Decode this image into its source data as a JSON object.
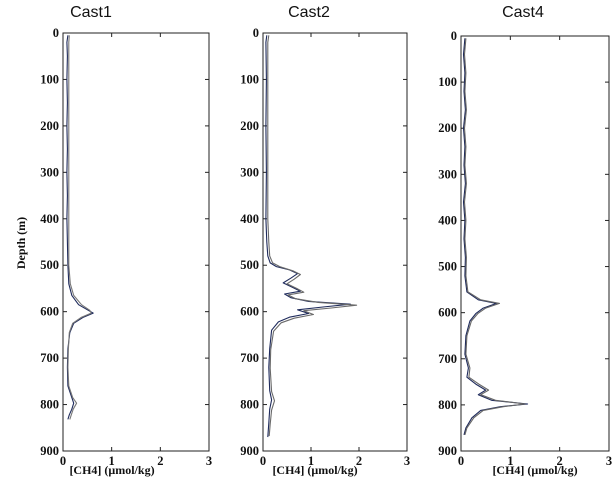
{
  "chart_data": [
    {
      "type": "line",
      "title": "Cast1",
      "xlabel": "[CH4] (μmol/kg)",
      "ylabel": "Depth (m)",
      "xlim": [
        0,
        3
      ],
      "ylim": [
        0,
        900
      ],
      "y_inverted": true,
      "x_ticks": [
        "0",
        "1",
        "2",
        "3"
      ],
      "y_ticks": [
        "0",
        "100",
        "200",
        "300",
        "400",
        "500",
        "600",
        "700",
        "800",
        "900"
      ],
      "series": [
        {
          "color": "#1f2b5c",
          "points": [
            [
              0.1,
              5
            ],
            [
              0.08,
              20
            ],
            [
              0.09,
              50
            ],
            [
              0.08,
              100
            ],
            [
              0.09,
              150
            ],
            [
              0.08,
              200
            ],
            [
              0.09,
              250
            ],
            [
              0.08,
              300
            ],
            [
              0.09,
              350
            ],
            [
              0.08,
              400
            ],
            [
              0.09,
              450
            ],
            [
              0.1,
              500
            ],
            [
              0.12,
              540
            ],
            [
              0.18,
              565
            ],
            [
              0.32,
              585
            ],
            [
              0.52,
              597
            ],
            [
              0.62,
              603
            ],
            [
              0.42,
              612
            ],
            [
              0.22,
              625
            ],
            [
              0.14,
              645
            ],
            [
              0.1,
              680
            ],
            [
              0.09,
              720
            ],
            [
              0.1,
              760
            ],
            [
              0.18,
              785
            ],
            [
              0.22,
              797
            ],
            [
              0.18,
              810
            ],
            [
              0.13,
              822
            ],
            [
              0.1,
              832
            ]
          ]
        },
        {
          "color": "#777777",
          "points": [
            [
              0.13,
              5
            ],
            [
              0.12,
              20
            ],
            [
              0.12,
              50
            ],
            [
              0.12,
              100
            ],
            [
              0.12,
              150
            ],
            [
              0.12,
              200
            ],
            [
              0.12,
              250
            ],
            [
              0.12,
              300
            ],
            [
              0.12,
              350
            ],
            [
              0.12,
              400
            ],
            [
              0.12,
              450
            ],
            [
              0.12,
              500
            ],
            [
              0.15,
              540
            ],
            [
              0.22,
              565
            ],
            [
              0.38,
              585
            ],
            [
              0.55,
              597
            ],
            [
              0.58,
              603
            ],
            [
              0.38,
              612
            ],
            [
              0.2,
              625
            ],
            [
              0.13,
              645
            ],
            [
              0.11,
              680
            ],
            [
              0.1,
              720
            ],
            [
              0.12,
              760
            ],
            [
              0.2,
              785
            ],
            [
              0.28,
              797
            ],
            [
              0.21,
              810
            ],
            [
              0.17,
              822
            ],
            [
              0.14,
              832
            ]
          ]
        }
      ]
    },
    {
      "type": "line",
      "title": "Cast2",
      "xlabel": "[CH4] (μmol/kg)",
      "ylabel": "",
      "xlim": [
        0,
        3
      ],
      "ylim": [
        0,
        900
      ],
      "y_inverted": true,
      "x_ticks": [
        "0",
        "1",
        "2",
        "3"
      ],
      "y_ticks": [
        "0",
        "100",
        "200",
        "300",
        "400",
        "500",
        "600",
        "700",
        "800",
        "900"
      ],
      "series": [
        {
          "color": "#1f2b5c",
          "points": [
            [
              0.08,
              5
            ],
            [
              0.06,
              20
            ],
            [
              0.07,
              100
            ],
            [
              0.06,
              200
            ],
            [
              0.07,
              300
            ],
            [
              0.06,
              400
            ],
            [
              0.08,
              450
            ],
            [
              0.1,
              480
            ],
            [
              0.15,
              495
            ],
            [
              0.28,
              503
            ],
            [
              0.55,
              510
            ],
            [
              0.72,
              518
            ],
            [
              0.58,
              528
            ],
            [
              0.42,
              538
            ],
            [
              0.62,
              548
            ],
            [
              0.78,
              556
            ],
            [
              0.45,
              562
            ],
            [
              0.58,
              570
            ],
            [
              0.95,
              578
            ],
            [
              1.82,
              584
            ],
            [
              1.25,
              590
            ],
            [
              0.72,
              596
            ],
            [
              0.95,
              604
            ],
            [
              0.55,
              612
            ],
            [
              0.32,
              622
            ],
            [
              0.18,
              640
            ],
            [
              0.14,
              680
            ],
            [
              0.12,
              720
            ],
            [
              0.14,
              770
            ],
            [
              0.18,
              790
            ],
            [
              0.14,
              810
            ],
            [
              0.12,
              840
            ],
            [
              0.1,
              870
            ]
          ]
        },
        {
          "color": "#6a6a6a",
          "points": [
            [
              0.12,
              5
            ],
            [
              0.1,
              20
            ],
            [
              0.1,
              100
            ],
            [
              0.1,
              200
            ],
            [
              0.1,
              300
            ],
            [
              0.1,
              400
            ],
            [
              0.12,
              450
            ],
            [
              0.14,
              480
            ],
            [
              0.2,
              495
            ],
            [
              0.35,
              503
            ],
            [
              0.62,
              512
            ],
            [
              0.78,
              520
            ],
            [
              0.65,
              530
            ],
            [
              0.5,
              540
            ],
            [
              0.7,
              550
            ],
            [
              0.85,
              558
            ],
            [
              0.52,
              564
            ],
            [
              0.68,
              572
            ],
            [
              1.15,
              580
            ],
            [
              1.95,
              586
            ],
            [
              1.42,
              592
            ],
            [
              0.85,
              598
            ],
            [
              1.05,
              606
            ],
            [
              0.65,
              614
            ],
            [
              0.38,
              624
            ],
            [
              0.22,
              642
            ],
            [
              0.16,
              682
            ],
            [
              0.15,
              722
            ],
            [
              0.18,
              772
            ],
            [
              0.24,
              792
            ],
            [
              0.18,
              812
            ],
            [
              0.15,
              842
            ],
            [
              0.13,
              868
            ]
          ]
        }
      ]
    },
    {
      "type": "line",
      "title": "Cast4",
      "xlabel": "[CH4] (μmol/kg)",
      "ylabel": "",
      "xlim": [
        0,
        3
      ],
      "ylim": [
        0,
        900
      ],
      "y_inverted": true,
      "x_ticks": [
        "0",
        "1",
        "2",
        "3"
      ],
      "y_ticks": [
        "0",
        "100",
        "200",
        "300",
        "400",
        "500",
        "600",
        "700",
        "800",
        "900"
      ],
      "series": [
        {
          "color": "#1f2b5c",
          "points": [
            [
              0.08,
              5
            ],
            [
              0.05,
              40
            ],
            [
              0.08,
              80
            ],
            [
              0.06,
              120
            ],
            [
              0.09,
              160
            ],
            [
              0.05,
              200
            ],
            [
              0.08,
              240
            ],
            [
              0.06,
              280
            ],
            [
              0.09,
              320
            ],
            [
              0.05,
              360
            ],
            [
              0.08,
              400
            ],
            [
              0.06,
              440
            ],
            [
              0.09,
              480
            ],
            [
              0.08,
              520
            ],
            [
              0.12,
              555
            ],
            [
              0.35,
              572
            ],
            [
              0.72,
              580
            ],
            [
              0.45,
              590
            ],
            [
              0.3,
              602
            ],
            [
              0.18,
              618
            ],
            [
              0.1,
              650
            ],
            [
              0.08,
              690
            ],
            [
              0.15,
              720
            ],
            [
              0.12,
              740
            ],
            [
              0.3,
              755
            ],
            [
              0.5,
              768
            ],
            [
              0.35,
              778
            ],
            [
              0.62,
              790
            ],
            [
              1.35,
              798
            ],
            [
              0.8,
              804
            ],
            [
              0.4,
              812
            ],
            [
              0.22,
              828
            ],
            [
              0.1,
              850
            ],
            [
              0.06,
              865
            ]
          ]
        },
        {
          "color": "#666666",
          "points": [
            [
              0.1,
              5
            ],
            [
              0.07,
              40
            ],
            [
              0.1,
              80
            ],
            [
              0.08,
              120
            ],
            [
              0.11,
              160
            ],
            [
              0.07,
              200
            ],
            [
              0.1,
              240
            ],
            [
              0.08,
              280
            ],
            [
              0.11,
              320
            ],
            [
              0.07,
              360
            ],
            [
              0.1,
              400
            ],
            [
              0.08,
              440
            ],
            [
              0.11,
              480
            ],
            [
              0.1,
              520
            ],
            [
              0.14,
              555
            ],
            [
              0.4,
              572
            ],
            [
              0.78,
              580
            ],
            [
              0.5,
              590
            ],
            [
              0.34,
              602
            ],
            [
              0.21,
              618
            ],
            [
              0.12,
              650
            ],
            [
              0.1,
              690
            ],
            [
              0.18,
              720
            ],
            [
              0.16,
              740
            ],
            [
              0.36,
              755
            ],
            [
              0.56,
              768
            ],
            [
              0.4,
              778
            ],
            [
              0.7,
              790
            ],
            [
              1.3,
              798
            ],
            [
              0.86,
              804
            ],
            [
              0.45,
              812
            ],
            [
              0.26,
              828
            ],
            [
              0.12,
              850
            ],
            [
              0.08,
              865
            ]
          ]
        }
      ]
    }
  ]
}
